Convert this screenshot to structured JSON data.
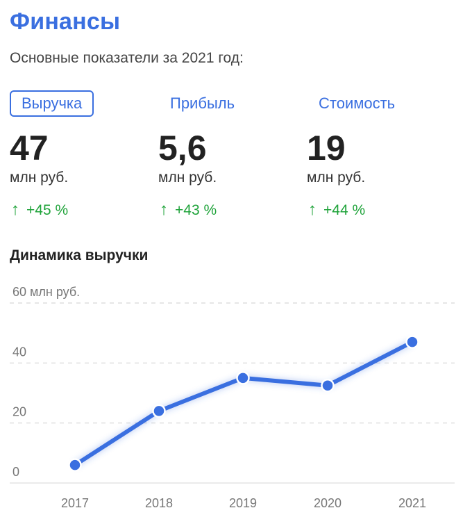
{
  "header": {
    "title": "Финансы",
    "subtitle": "Основные показатели за 2021 год:"
  },
  "metrics": [
    {
      "tab": "Выручка",
      "value": "47",
      "unit": "млн руб.",
      "change": "+45 %",
      "active": true
    },
    {
      "tab": "Прибыль",
      "value": "5,6",
      "unit": "млн руб.",
      "change": "+43 %",
      "active": false
    },
    {
      "tab": "Стоимость",
      "value": "19",
      "unit": "млн руб.",
      "change": "+44 %",
      "active": false
    }
  ],
  "colors": {
    "accent": "#3a6fe0",
    "positive": "#1fa33a",
    "line": "#3a6fe0"
  },
  "icons": {
    "change": "arrow-up-icon"
  },
  "chart_data": {
    "type": "line",
    "title": "Динамика выручки",
    "x": [
      "2017",
      "2018",
      "2019",
      "2020",
      "2021"
    ],
    "series": [
      {
        "values": [
          6,
          24,
          35,
          32.5,
          47
        ]
      }
    ],
    "y_ticks": [
      "0",
      "20",
      "40",
      "60 млн руб."
    ],
    "ylim": [
      0,
      60
    ],
    "grid": true,
    "xlabel": "",
    "ylabel": ""
  }
}
